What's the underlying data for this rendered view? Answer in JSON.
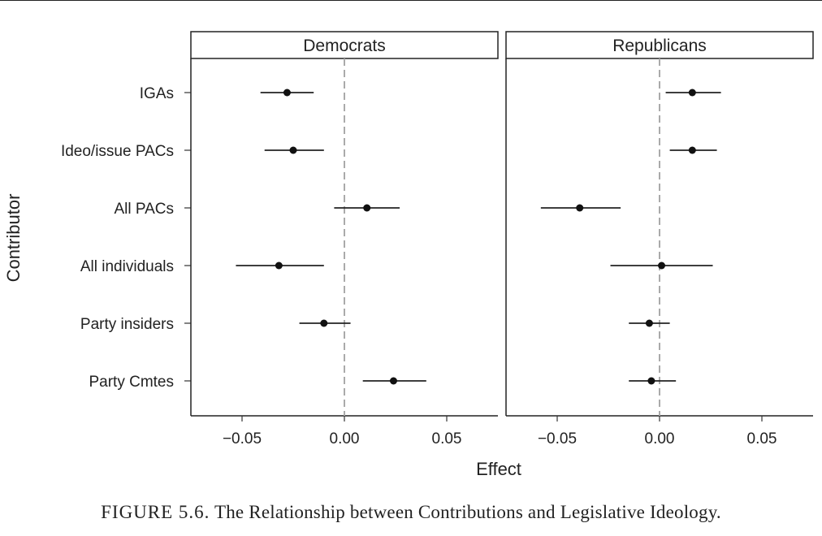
{
  "chart_data": {
    "type": "scatter",
    "subtype": "coefficient-plot-with-error-bars",
    "ylabel": "Contributor",
    "xlabel": "Effect",
    "xlim": [
      -0.075,
      0.075
    ],
    "x_ticks": [
      -0.05,
      0.0,
      0.05
    ],
    "x_tick_labels": [
      "−0.05",
      "0.00",
      "0.05"
    ],
    "reference_line": {
      "x": 0,
      "style": "dashed",
      "color": "#aaaaaa"
    },
    "categories": [
      "IGAs",
      "Ideo/issue PACs",
      "All PACs",
      "All individuals",
      "Party insiders",
      "Party Cmtes"
    ],
    "panels": [
      {
        "name": "Democrats",
        "points": [
          {
            "label": "IGAs",
            "estimate": -0.028,
            "low": -0.041,
            "high": -0.015
          },
          {
            "label": "Ideo/issue PACs",
            "estimate": -0.025,
            "low": -0.039,
            "high": -0.01
          },
          {
            "label": "All PACs",
            "estimate": 0.011,
            "low": -0.005,
            "high": 0.027
          },
          {
            "label": "All individuals",
            "estimate": -0.032,
            "low": -0.053,
            "high": -0.01
          },
          {
            "label": "Party insiders",
            "estimate": -0.01,
            "low": -0.022,
            "high": 0.003
          },
          {
            "label": "Party Cmtes",
            "estimate": 0.024,
            "low": 0.009,
            "high": 0.04
          }
        ]
      },
      {
        "name": "Republicans",
        "points": [
          {
            "label": "IGAs",
            "estimate": 0.016,
            "low": 0.003,
            "high": 0.03
          },
          {
            "label": "Ideo/issue PACs",
            "estimate": 0.016,
            "low": 0.005,
            "high": 0.028
          },
          {
            "label": "All PACs",
            "estimate": -0.039,
            "low": -0.058,
            "high": -0.019
          },
          {
            "label": "All individuals",
            "estimate": 0.001,
            "low": -0.024,
            "high": 0.026
          },
          {
            "label": "Party insiders",
            "estimate": -0.005,
            "low": -0.015,
            "high": 0.005
          },
          {
            "label": "Party Cmtes",
            "estimate": -0.004,
            "low": -0.015,
            "high": 0.008
          }
        ]
      }
    ]
  },
  "caption": {
    "prefix": "FIGURE 5.6.",
    "text": " The Relationship between Contributions and Legislative Ideology."
  }
}
